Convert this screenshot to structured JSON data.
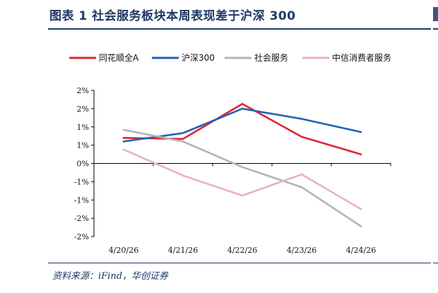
{
  "header": {
    "title": "图表 1  社会服务板块本周表现差于沪深 300"
  },
  "footer": {
    "source": "资料来源：iFind，华创证券"
  },
  "chart_data": {
    "type": "line",
    "title": "",
    "xlabel": "",
    "ylabel": "",
    "categories": [
      "4/20/26",
      "4/21/26",
      "4/22/26",
      "4/23/26",
      "4/24/26"
    ],
    "y_ticks": [
      2,
      1.5,
      1,
      0.5,
      0,
      -0.5,
      -1,
      -1.5,
      -2
    ],
    "y_tick_labels": [
      "2%",
      "2%",
      "1%",
      "1%",
      "0%",
      "-1%",
      "-1%",
      "-2%",
      "-2%"
    ],
    "ylim": [
      -2,
      2
    ],
    "grid": false,
    "legend_position": "top",
    "series": [
      {
        "name": "同花顺全A",
        "color": "#e02433",
        "values": [
          0.7,
          0.67,
          1.63,
          0.73,
          0.25
        ]
      },
      {
        "name": "沪深300",
        "color": "#1f63b5",
        "values": [
          0.6,
          0.83,
          1.5,
          1.22,
          0.86
        ]
      },
      {
        "name": "社会服务",
        "color": "#b3b3b3",
        "values": [
          0.92,
          0.6,
          -0.1,
          -0.65,
          -1.72
        ]
      },
      {
        "name": "中信消费者服务",
        "color": "#e8b4b4",
        "values": [
          0.38,
          -0.33,
          -0.88,
          -0.3,
          -1.25
        ]
      }
    ]
  }
}
